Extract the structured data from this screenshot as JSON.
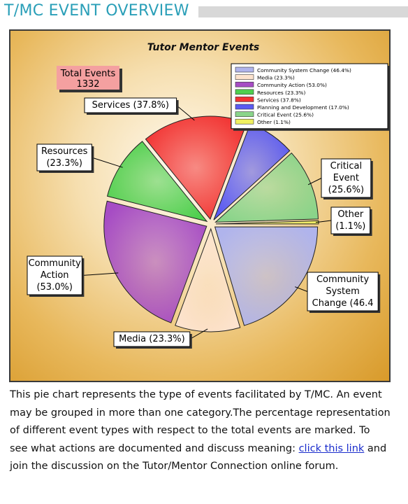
{
  "header": {
    "title": "T/MC EVENT OVERVIEW"
  },
  "chart_data": {
    "type": "pie",
    "title": "Tutor Mentor Events",
    "total_label": "Total Events",
    "total_value": "1332",
    "slices": [
      {
        "name": "Community System Change",
        "value": 46.4,
        "legend": "Community System Change (46.4%)",
        "callout": [
          "Community",
          "System",
          "Change (46.4"
        ],
        "color": "#b0b4ec"
      },
      {
        "name": "Media",
        "value": 23.3,
        "legend": "Media (23.3%)",
        "callout": [
          "Media (23.3%)"
        ],
        "color": "#fde3ce"
      },
      {
        "name": "Community Action",
        "value": 53.0,
        "legend": "Community Action (53.0%)",
        "callout": [
          "Community",
          "Action",
          "(53.0%)"
        ],
        "color": "#a64cc4"
      },
      {
        "name": "Resources",
        "value": 23.3,
        "legend": "Resources (23.3%)",
        "callout": [
          "Resources",
          "(23.3%)"
        ],
        "color": "#4fd04f"
      },
      {
        "name": "Services",
        "value": 37.8,
        "legend": "Services (37.8%)",
        "callout": [
          "Services (37.8%)"
        ],
        "color": "#f23232"
      },
      {
        "name": "Planning and Development",
        "value": 17.0,
        "legend": "Planning and Development (17.0%)",
        "callout": [],
        "color": "#5a5af2"
      },
      {
        "name": "Critical Event",
        "value": 25.6,
        "legend": "Critical Event (25.6%)",
        "callout": [
          "Critical",
          "Event",
          "(25.6%)"
        ],
        "color": "#8ad48a"
      },
      {
        "name": "Other",
        "value": 1.1,
        "legend": "Other (1.1%)",
        "callout": [
          "Other",
          "(1.1%)"
        ],
        "color": "#f0f060"
      }
    ]
  },
  "description": {
    "before_link": "This pie chart represents the type of events facilitated by T/MC. An event may be grouped in more than one category.The percentage representation of different event types with respect to the total events are marked. To see what actions are documented and discuss meaning: ",
    "link_text": "click this link",
    "after_link": " and join the discussion on the Tutor/Mentor Connection online forum."
  }
}
